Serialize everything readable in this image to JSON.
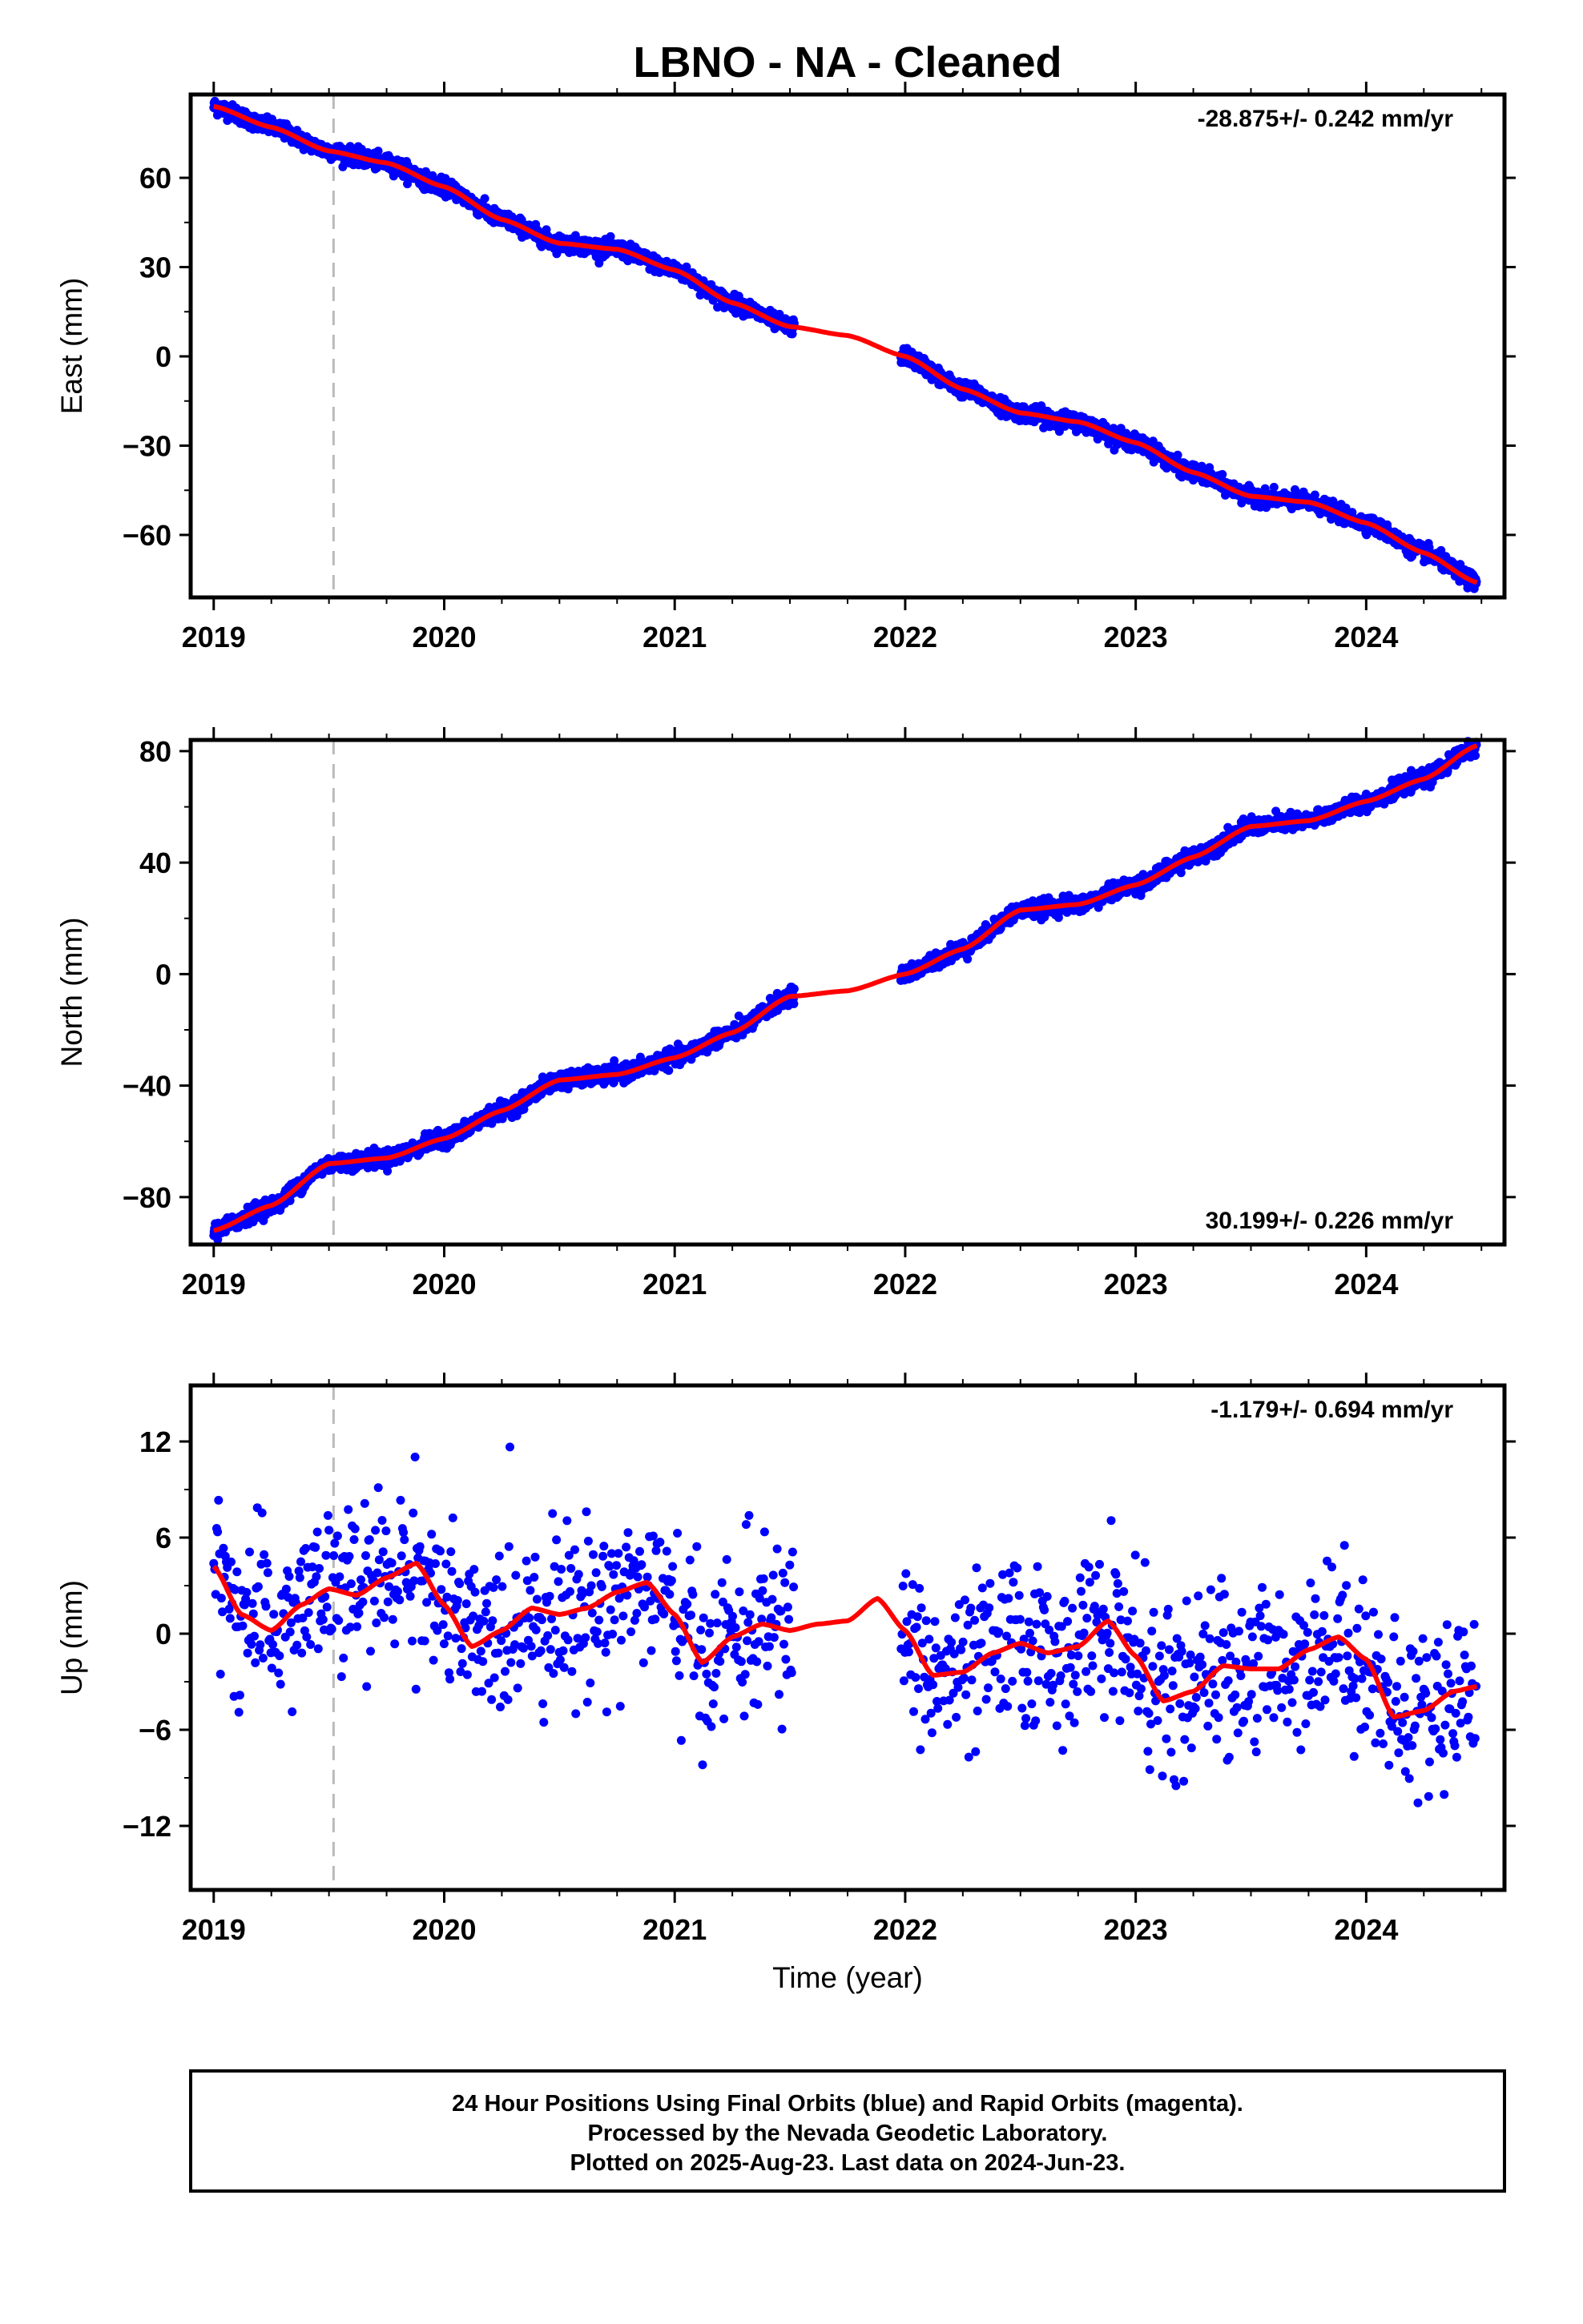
{
  "title": "LBNO  - NA - Cleaned",
  "xlabel": "Time (year)",
  "footer": {
    "line1": "24 Hour Positions Using Final Orbits (blue) and Rapid Orbits (magenta).",
    "line2": "Processed by the Nevada Geodetic Laboratory.",
    "line3": "Plotted on 2025-Aug-23. Last data on 2024-Jun-23."
  },
  "colors": {
    "data": "#0000ff",
    "fit": "#ff0000",
    "event": "#bbbbbb",
    "frame": "#000000"
  },
  "chart_data": [
    {
      "type": "scatter",
      "component": "east",
      "ylabel": "East (mm)",
      "rate": "-28.875+/- 0.242 mm/yr",
      "xlim": [
        2018.9,
        2024.6
      ],
      "ylim": [
        -81,
        88
      ],
      "yticks": [
        60,
        30,
        0,
        -30,
        -60
      ],
      "xticks": [
        2019,
        2020,
        2021,
        2022,
        2023,
        2024
      ],
      "event_line": 2019.52,
      "data_gap": [
        2021.52,
        2021.98
      ],
      "fit": {
        "x": [
          2019.0,
          2019.25,
          2019.5,
          2019.75,
          2020.0,
          2020.25,
          2020.5,
          2020.75,
          2021.0,
          2021.25,
          2021.5,
          2021.75,
          2022.0,
          2022.25,
          2022.5,
          2022.75,
          2023.0,
          2023.25,
          2023.5,
          2023.75,
          2024.0,
          2024.25,
          2024.48
        ],
        "y": [
          84,
          77,
          69,
          65,
          57,
          46,
          38,
          36,
          29,
          18,
          10,
          7,
          0,
          -11,
          -19,
          -22,
          -29,
          -39,
          -47,
          -49,
          -56,
          -66,
          -76
        ]
      },
      "scatter_sd": 1.3
    },
    {
      "type": "scatter",
      "component": "north",
      "ylabel": "North (mm)",
      "rate": "30.199+/- 0.226 mm/yr",
      "xlim": [
        2018.9,
        2024.6
      ],
      "ylim": [
        -97,
        84
      ],
      "yticks": [
        80,
        40,
        0,
        -40,
        -80
      ],
      "xticks": [
        2019,
        2020,
        2021,
        2022,
        2023,
        2024
      ],
      "event_line": 2019.52,
      "data_gap": [
        2021.52,
        2021.98
      ],
      "fit": {
        "x": [
          2019.0,
          2019.25,
          2019.5,
          2019.75,
          2020.0,
          2020.25,
          2020.5,
          2020.75,
          2021.0,
          2021.25,
          2021.5,
          2021.75,
          2022.0,
          2022.25,
          2022.5,
          2022.75,
          2023.0,
          2023.25,
          2023.5,
          2023.75,
          2024.0,
          2024.25,
          2024.48
        ],
        "y": [
          -92,
          -83,
          -68,
          -66,
          -59,
          -49,
          -38,
          -36,
          -30,
          -21,
          -8,
          -6,
          0,
          9,
          23,
          25,
          32,
          42,
          53,
          55,
          62,
          70,
          82
        ]
      },
      "scatter_sd": 1.4
    },
    {
      "type": "scatter",
      "component": "up",
      "ylabel": "Up (mm)",
      "rate": "-1.179+/- 0.694 mm/yr",
      "xlim": [
        2018.9,
        2024.6
      ],
      "ylim": [
        -16,
        15.5
      ],
      "yticks": [
        12,
        6,
        0,
        -6,
        -12
      ],
      "xticks": [
        2019,
        2020,
        2021,
        2022,
        2023,
        2024
      ],
      "event_line": 2019.52,
      "data_gap": [
        2021.52,
        2021.98
      ],
      "fit": {
        "x": [
          2019.0,
          2019.12,
          2019.25,
          2019.38,
          2019.5,
          2019.62,
          2019.75,
          2019.88,
          2020.0,
          2020.12,
          2020.25,
          2020.38,
          2020.5,
          2020.62,
          2020.75,
          2020.88,
          2021.0,
          2021.12,
          2021.25,
          2021.38,
          2021.5,
          2021.62,
          2021.75,
          2021.88,
          2022.0,
          2022.12,
          2022.25,
          2022.38,
          2022.5,
          2022.62,
          2022.75,
          2022.88,
          2023.0,
          2023.12,
          2023.25,
          2023.38,
          2023.5,
          2023.62,
          2023.75,
          2023.88,
          2024.0,
          2024.12,
          2024.25,
          2024.38,
          2024.48
        ],
        "y": [
          4.2,
          1.2,
          0.2,
          1.8,
          2.8,
          2.4,
          3.5,
          4.4,
          1.8,
          -0.8,
          0.2,
          1.6,
          1.2,
          1.6,
          2.6,
          3.2,
          1.2,
          -1.8,
          -0.2,
          0.6,
          0.2,
          0.6,
          0.8,
          2.2,
          0.2,
          -2.6,
          -2.4,
          -1.2,
          -0.6,
          -1.2,
          -0.8,
          0.8,
          -1.4,
          -4.2,
          -3.6,
          -2.0,
          -2.2,
          -2.2,
          -1.0,
          -0.2,
          -1.6,
          -5.2,
          -4.8,
          -3.6,
          -3.3
        ]
      },
      "scatter_sd": 2.6
    }
  ]
}
